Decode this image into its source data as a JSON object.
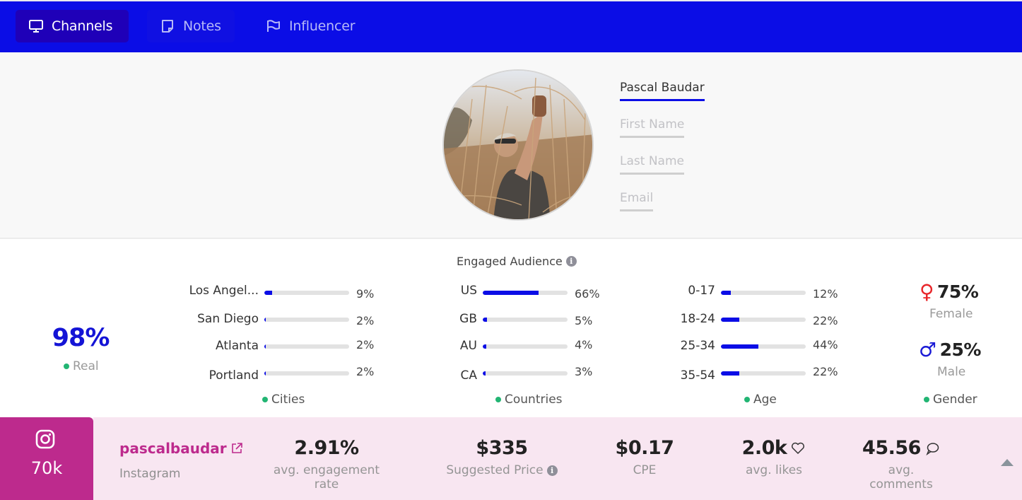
{
  "nav": {
    "tabs": [
      {
        "label": "Channels",
        "icon": "monitor-icon",
        "active": true
      },
      {
        "label": "Notes",
        "icon": "note-icon",
        "active": false
      },
      {
        "label": "Influencer",
        "icon": "flag-icon",
        "active": false
      }
    ]
  },
  "profile": {
    "name": "Pascal Baudar",
    "first_name_placeholder": "First Name",
    "last_name_placeholder": "Last Name",
    "email_placeholder": "Email"
  },
  "audience": {
    "title": "Engaged Audience",
    "real": {
      "value": "98%",
      "label": "Real"
    },
    "cities": {
      "label": "Cities",
      "items": [
        {
          "name": "Los Angel...",
          "value": 9,
          "display": "9%"
        },
        {
          "name": "San Diego",
          "value": 2,
          "display": "2%"
        },
        {
          "name": "Atlanta",
          "value": 2,
          "display": "2%"
        },
        {
          "name": "Portland",
          "value": 2,
          "display": "2%"
        }
      ]
    },
    "countries": {
      "label": "Countries",
      "items": [
        {
          "name": "US",
          "value": 66,
          "display": "66%"
        },
        {
          "name": "GB",
          "value": 5,
          "display": "5%"
        },
        {
          "name": "AU",
          "value": 4,
          "display": "4%"
        },
        {
          "name": "CA",
          "value": 3,
          "display": "3%"
        }
      ]
    },
    "age": {
      "label": "Age",
      "items": [
        {
          "name": "0-17",
          "value": 12,
          "display": "12%"
        },
        {
          "name": "18-24",
          "value": 22,
          "display": "22%"
        },
        {
          "name": "25-34",
          "value": 44,
          "display": "44%"
        },
        {
          "name": "35-54",
          "value": 22,
          "display": "22%"
        }
      ]
    },
    "gender": {
      "label": "Gender",
      "female": {
        "symbol": "♀",
        "value": "75%",
        "label": "Female",
        "color": "#e8262a"
      },
      "male": {
        "symbol": "♂",
        "value": "25%",
        "label": "Male",
        "color": "#1a1ad6"
      }
    }
  },
  "channel": {
    "platform": "Instagram",
    "followers": "70k",
    "handle": "pascalbaudar",
    "brand_color": "#bd2a8d",
    "stats": [
      {
        "value": "2.91%",
        "label": "avg. engagement rate"
      },
      {
        "value": "$335",
        "label": "Suggested Price"
      },
      {
        "value": "$0.17",
        "label": "CPE"
      },
      {
        "value": "2.0k",
        "label": "avg. likes",
        "icon": "heart-icon"
      },
      {
        "value": "45.56",
        "label": "avg. comments",
        "icon": "comment-icon"
      }
    ]
  },
  "colors": {
    "nav_bg": "#0b0de6",
    "accent": "#0b0de6",
    "bar_track": "#e2e2e2",
    "legend_dot": "#22b573"
  }
}
